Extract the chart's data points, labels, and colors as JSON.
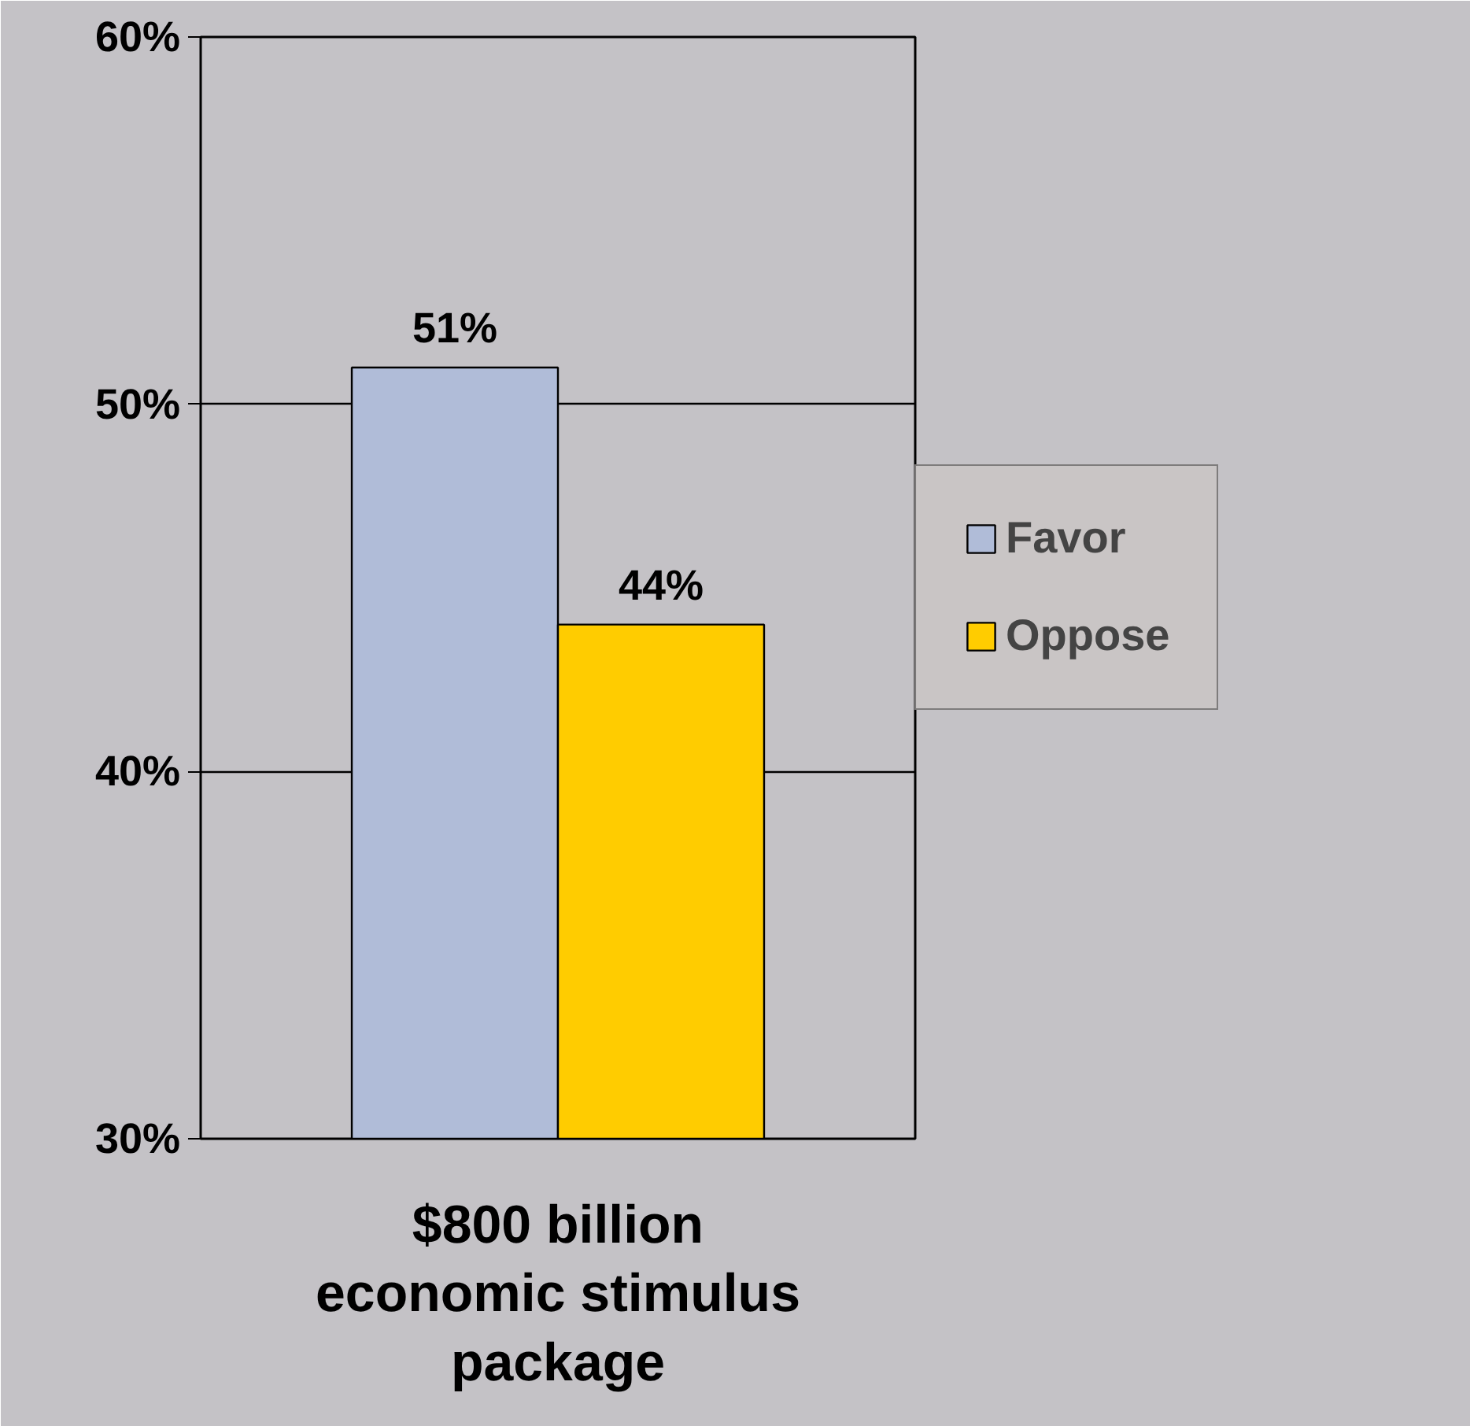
{
  "chart_data": {
    "type": "bar",
    "categories": [
      "$800 billion economic stimulus package"
    ],
    "series": [
      {
        "name": "Favor",
        "color": "#b0bcd8",
        "values": [
          51
        ],
        "value_labels": [
          "51%"
        ]
      },
      {
        "name": "Oppose",
        "color": "#ffcc00",
        "values": [
          44
        ],
        "value_labels": [
          "44%"
        ]
      }
    ],
    "ylim": [
      30,
      60
    ],
    "yticks": [
      {
        "value": 30,
        "label": "30%"
      },
      {
        "value": 40,
        "label": "40%"
      },
      {
        "value": 50,
        "label": "50%"
      },
      {
        "value": 60,
        "label": "60%"
      }
    ],
    "grid": "y",
    "legend": "right"
  }
}
